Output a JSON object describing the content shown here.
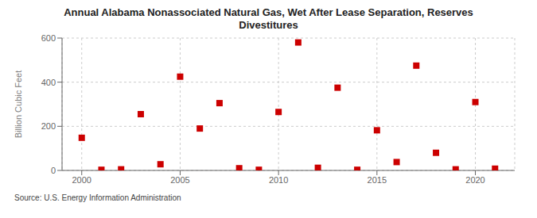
{
  "chart_data": {
    "type": "scatter",
    "title": "Annual Alabama Nonassociated Natural Gas, Wet After Lease Separation, Reserves\nDivestitures",
    "ylabel": "Billion Cubic Feet",
    "annotations": [
      "Source: U.S. Energy Information Administration"
    ],
    "x": [
      2000,
      2001,
      2002,
      2003,
      2004,
      2005,
      2006,
      2007,
      2008,
      2009,
      2010,
      2011,
      2012,
      2013,
      2014,
      2015,
      2016,
      2017,
      2018,
      2019,
      2020,
      2021
    ],
    "values": [
      148,
      3,
      5,
      255,
      28,
      425,
      190,
      305,
      10,
      3,
      265,
      580,
      12,
      375,
      3,
      182,
      38,
      475,
      80,
      5,
      310,
      8
    ],
    "color": "#cc0000",
    "marker": "square",
    "xlim": [
      1999,
      2022
    ],
    "xticks": [
      2000,
      2005,
      2010,
      2015,
      2020
    ],
    "ylim": [
      0,
      600
    ],
    "yticks": [
      0,
      200,
      400,
      600
    ],
    "grid": true
  }
}
